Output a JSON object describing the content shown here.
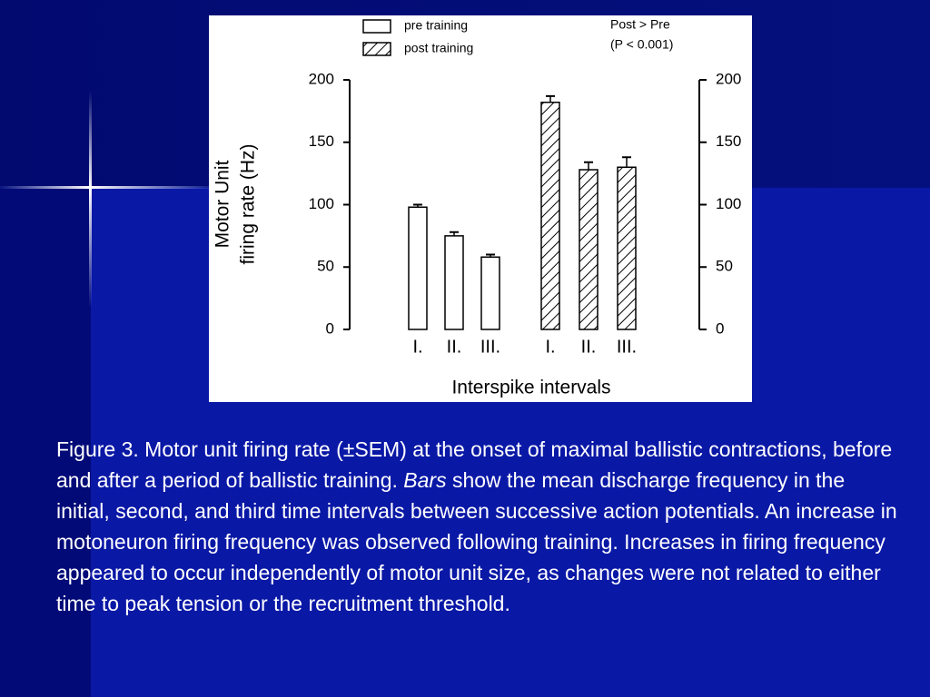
{
  "chart_data": {
    "type": "bar",
    "categories": [
      "I.",
      "II.",
      "III.",
      "I.",
      "II.",
      "III."
    ],
    "series": [
      {
        "name": "pre training",
        "color": "#000000",
        "hatch": false,
        "values": [
          98,
          75,
          58,
          null,
          null,
          null
        ],
        "errors": [
          2,
          3,
          2,
          null,
          null,
          null
        ]
      },
      {
        "name": "post training",
        "color": "#000000",
        "hatch": true,
        "values": [
          null,
          null,
          null,
          182,
          128,
          130
        ],
        "errors": [
          null,
          null,
          null,
          5,
          6,
          8
        ]
      }
    ],
    "ylabel": [
      "Motor Unit",
      "firing rate (Hz)"
    ],
    "xlabel": "Interspike intervals",
    "annotations": [
      "Post > Pre",
      "(P < 0.001)"
    ],
    "ylim": [
      0,
      200
    ],
    "yticks": [
      0,
      50,
      100,
      150,
      200
    ],
    "y2lim": [
      0,
      200
    ],
    "y2ticks": [
      0,
      50,
      100,
      150,
      200
    ],
    "legend": "top"
  },
  "caption": [
    "Figure 3. Motor unit firing rate (±SEM) at the onset of maximal ballistic contractions, before and after a period of ballistic training. ",
    "Bars",
    " show the mean discharge frequency in the initial, second, and third time intervals between successive action potentials. An increase in motoneuron firing frequency was observed following training. Increases in firing frequency appeared to occur independently of motor unit size, as changes were not related to either time to peak tension or the recruitment threshold."
  ]
}
